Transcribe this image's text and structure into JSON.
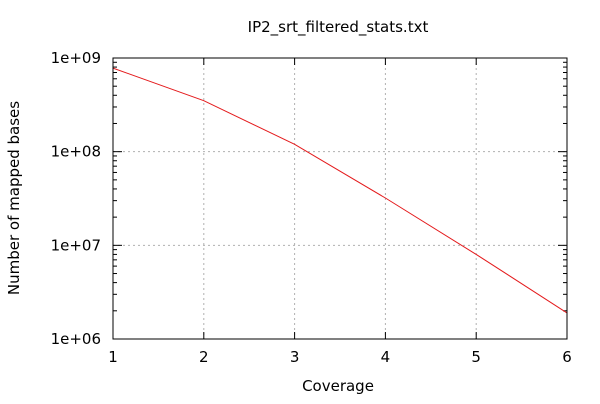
{
  "chart_data": {
    "type": "line",
    "title": "IP2_srt_filtered_stats.txt",
    "xlabel": "Coverage",
    "ylabel": "Number of mapped bases",
    "xlim": [
      1,
      6
    ],
    "ylim": [
      1000000,
      1000000000
    ],
    "y_scale": "log",
    "x_ticks": [
      1,
      2,
      3,
      4,
      5,
      6
    ],
    "x_tick_labels": [
      "1",
      "2",
      "3",
      "4",
      "5",
      "6"
    ],
    "y_ticks": [
      1000000,
      10000000,
      100000000,
      1000000000
    ],
    "y_tick_labels": [
      "1e+06",
      "1e+07",
      "1e+08",
      "1e+09"
    ],
    "grid": true,
    "line_color": "#e41a1c",
    "grid_color": "#b0b0b0",
    "series": [
      {
        "x": [
          1,
          2,
          3,
          4,
          5,
          6
        ],
        "y": [
          780000000,
          350000000,
          120000000,
          32000000,
          8000000,
          1900000
        ]
      }
    ]
  }
}
